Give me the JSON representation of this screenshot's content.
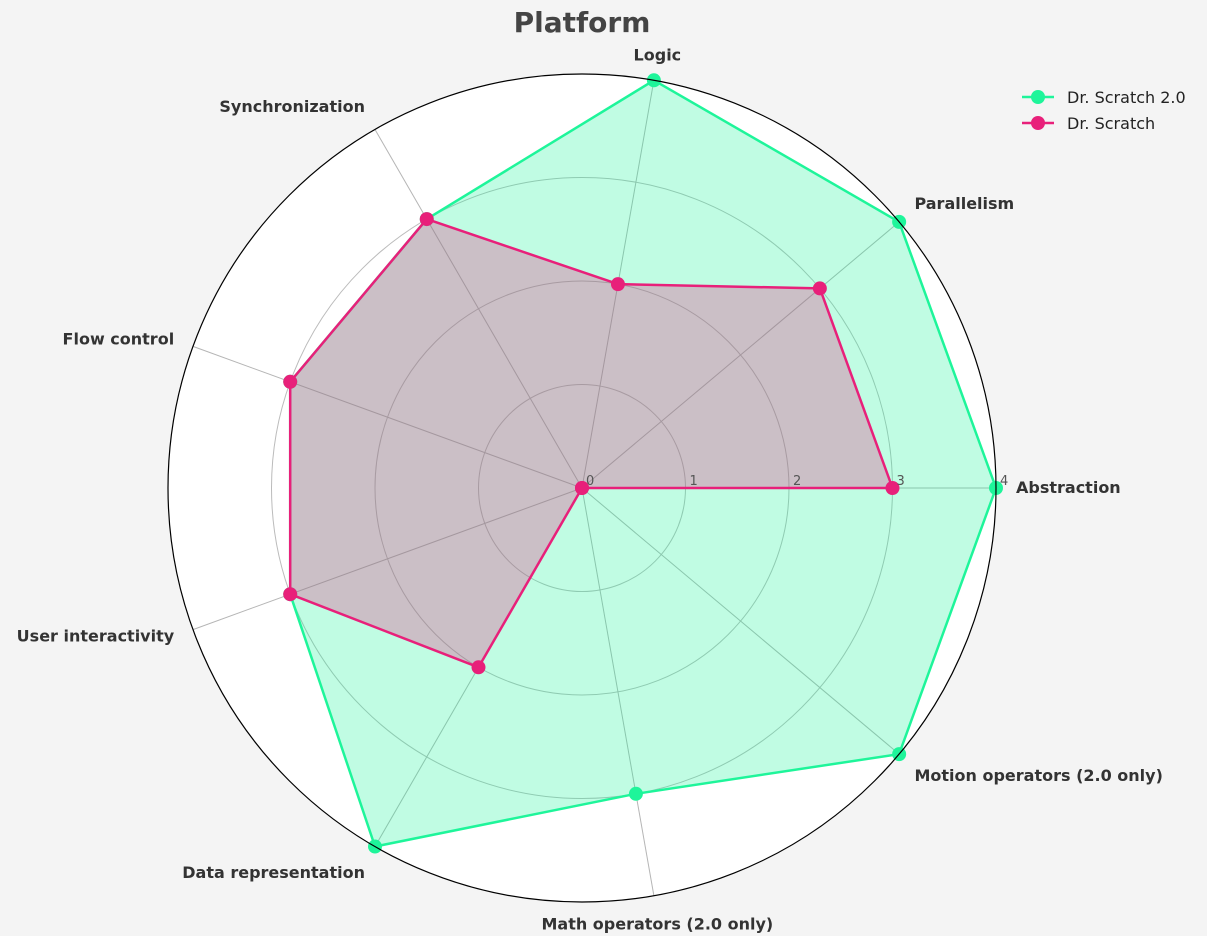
{
  "chart_data": {
    "type": "radar",
    "title": "Platform",
    "axes": [
      "Abstraction",
      "Parallelism",
      "Logic",
      "Synchronization",
      "Flow control",
      "User interactivity",
      "Data representation",
      "Math operators (2.0 only)",
      "Motion operators (2.0 only)"
    ],
    "rlim": [
      0,
      4
    ],
    "rticks": [
      "0",
      "1",
      "2",
      "3",
      "4"
    ],
    "grid": true,
    "legend_position": "top-right",
    "series": [
      {
        "name": "Dr. Scratch 2.0",
        "color": "#1ef59a",
        "values": [
          4,
          4,
          4,
          3,
          3,
          3,
          4,
          3,
          4
        ]
      },
      {
        "name": "Dr. Scratch",
        "color": "#e8207a",
        "values": [
          3,
          3,
          2,
          3,
          3,
          3,
          2,
          0,
          0
        ]
      }
    ]
  }
}
